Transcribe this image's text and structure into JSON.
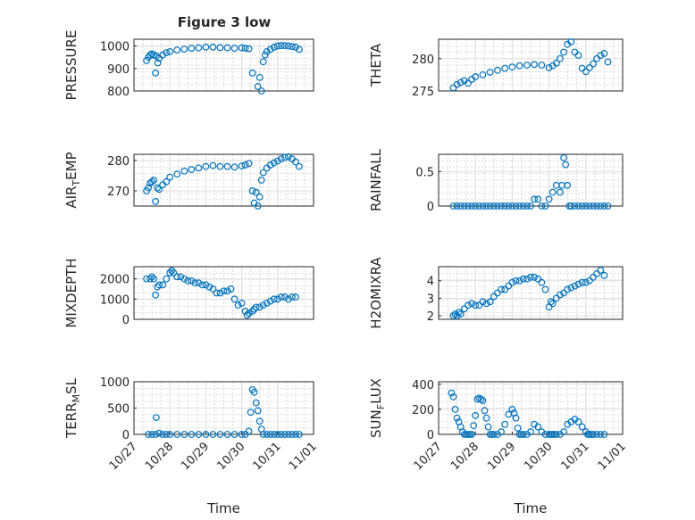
{
  "figure_title": "Figure 3 low",
  "marker_color": "#0072bd",
  "chart_data": [
    {
      "type": "scatter",
      "id": "pressure",
      "ylabel": "PRESSURE",
      "xlabel": "",
      "ylim": [
        800,
        1030
      ],
      "yticks": [
        800,
        900,
        1000
      ],
      "xlim": [
        0,
        5
      ],
      "xticks": [],
      "grid": true,
      "x": [
        0.35,
        0.4,
        0.45,
        0.5,
        0.55,
        0.6,
        0.62,
        0.66,
        0.7,
        0.8,
        0.9,
        1.0,
        1.2,
        1.4,
        1.6,
        1.8,
        2.0,
        2.2,
        2.4,
        2.6,
        2.8,
        3.0,
        3.1,
        3.2,
        3.3,
        3.45,
        3.5,
        3.55,
        3.6,
        3.65,
        3.7,
        3.8,
        3.9,
        4.0,
        4.1,
        4.2,
        4.3,
        4.4,
        4.5,
        4.6
      ],
      "y": [
        935,
        950,
        960,
        965,
        960,
        880,
        955,
        925,
        945,
        960,
        970,
        975,
        982,
        986,
        990,
        992,
        995,
        995,
        993,
        992,
        990,
        992,
        990,
        988,
        880,
        820,
        860,
        800,
        930,
        960,
        975,
        985,
        995,
        1000,
        1002,
        1002,
        1000,
        998,
        995,
        985
      ]
    },
    {
      "type": "scatter",
      "id": "theta",
      "ylabel": "THETA",
      "xlabel": "",
      "ylim": [
        275,
        283
      ],
      "yticks": [
        275,
        280
      ],
      "xlim": [
        0,
        5
      ],
      "xticks": [],
      "grid": true,
      "x": [
        0.4,
        0.5,
        0.6,
        0.7,
        0.8,
        0.9,
        1.0,
        1.2,
        1.4,
        1.6,
        1.8,
        2.0,
        2.2,
        2.4,
        2.6,
        2.8,
        3.0,
        3.1,
        3.2,
        3.3,
        3.4,
        3.5,
        3.6,
        3.7,
        3.8,
        3.9,
        4.0,
        4.1,
        4.2,
        4.3,
        4.4,
        4.5,
        4.6
      ],
      "y": [
        275.5,
        276,
        276.3,
        276.6,
        276.2,
        276.8,
        277.2,
        277.5,
        277.9,
        278.2,
        278.5,
        278.7,
        278.9,
        279,
        279.1,
        279,
        278.6,
        278.9,
        279.3,
        280,
        281,
        282.2,
        282.6,
        281,
        280.5,
        278.5,
        278,
        278.6,
        279.2,
        280,
        280.5,
        280.8,
        279.5
      ]
    },
    {
      "type": "scatter",
      "id": "air-temp",
      "ylabel": "AIR_TEMP",
      "xlabel": "",
      "ylim": [
        265,
        282
      ],
      "yticks": [
        270,
        280
      ],
      "xlim": [
        0,
        5
      ],
      "xticks": [],
      "grid": true,
      "x": [
        0.35,
        0.4,
        0.45,
        0.5,
        0.55,
        0.6,
        0.65,
        0.7,
        0.8,
        0.9,
        1.0,
        1.2,
        1.4,
        1.6,
        1.8,
        2.0,
        2.2,
        2.4,
        2.6,
        2.8,
        3.0,
        3.1,
        3.2,
        3.3,
        3.35,
        3.4,
        3.45,
        3.5,
        3.55,
        3.6,
        3.7,
        3.8,
        3.9,
        4.0,
        4.1,
        4.2,
        4.3,
        4.4,
        4.5,
        4.6
      ],
      "y": [
        270,
        271,
        272.5,
        273,
        273.5,
        266.5,
        271,
        270.5,
        272,
        273,
        274.5,
        275.5,
        276.5,
        277,
        277.5,
        278,
        278.3,
        278,
        278,
        277.8,
        278.2,
        278.5,
        279,
        270,
        266,
        269.5,
        265,
        268,
        273.5,
        276,
        277.5,
        278.5,
        279.2,
        279.8,
        280.5,
        281,
        281.2,
        280.5,
        279.5,
        278
      ]
    },
    {
      "type": "scatter",
      "id": "rainfall",
      "ylabel": "RAINFALL",
      "xlabel": "",
      "ylim": [
        0,
        0.75
      ],
      "yticks": [
        0,
        0.5
      ],
      "xlim": [
        0,
        5
      ],
      "xticks": [],
      "grid": true,
      "x": [
        0.4,
        0.5,
        0.6,
        0.7,
        0.8,
        0.9,
        1.0,
        1.1,
        1.2,
        1.3,
        1.4,
        1.5,
        1.6,
        1.7,
        1.8,
        1.9,
        2.0,
        2.1,
        2.2,
        2.3,
        2.4,
        2.5,
        2.6,
        2.7,
        2.8,
        2.9,
        3.0,
        3.1,
        3.2,
        3.3,
        3.35,
        3.4,
        3.45,
        3.5,
        3.55,
        3.6,
        3.7,
        3.8,
        3.9,
        4.0,
        4.1,
        4.2,
        4.3,
        4.4,
        4.5,
        4.6
      ],
      "y": [
        0,
        0,
        0,
        0,
        0,
        0,
        0,
        0,
        0,
        0,
        0,
        0,
        0,
        0,
        0,
        0,
        0,
        0,
        0,
        0,
        0,
        0,
        0.1,
        0.1,
        0,
        0,
        0.1,
        0.2,
        0.3,
        0.2,
        0.3,
        0.7,
        0.6,
        0.3,
        0,
        0,
        0,
        0,
        0,
        0,
        0,
        0,
        0,
        0,
        0,
        0
      ]
    },
    {
      "type": "scatter",
      "id": "mixdepth",
      "ylabel": "MIXDEPTH",
      "xlabel": "",
      "ylim": [
        0,
        2600
      ],
      "yticks": [
        0,
        1000,
        2000
      ],
      "xlim": [
        0,
        5
      ],
      "xticks": [],
      "grid": true,
      "x": [
        0.35,
        0.45,
        0.5,
        0.55,
        0.6,
        0.65,
        0.7,
        0.8,
        0.9,
        1.0,
        1.05,
        1.1,
        1.2,
        1.3,
        1.4,
        1.5,
        1.6,
        1.7,
        1.8,
        1.9,
        2.0,
        2.1,
        2.2,
        2.3,
        2.4,
        2.5,
        2.6,
        2.7,
        2.8,
        2.9,
        3.0,
        3.1,
        3.15,
        3.2,
        3.3,
        3.35,
        3.4,
        3.5,
        3.6,
        3.7,
        3.8,
        3.9,
        4.0,
        4.1,
        4.2,
        4.3,
        4.4,
        4.5
      ],
      "y": [
        2000,
        2000,
        2100,
        2000,
        1200,
        1600,
        1700,
        1700,
        2000,
        2300,
        2400,
        2300,
        2100,
        2100,
        2000,
        1900,
        1900,
        1800,
        1800,
        1700,
        1700,
        1600,
        1500,
        1300,
        1300,
        1400,
        1400,
        1500,
        1000,
        700,
        800,
        400,
        200,
        300,
        400,
        500,
        600,
        600,
        700,
        800,
        900,
        1000,
        1000,
        1100,
        1100,
        1000,
        1100,
        1100
      ]
    },
    {
      "type": "scatter",
      "id": "h2omixra",
      "ylabel": "H2OMIXRA",
      "xlabel": "",
      "ylim": [
        1.8,
        4.8
      ],
      "yticks": [
        2,
        3,
        4
      ],
      "xlim": [
        0,
        5
      ],
      "xticks": [],
      "grid": true,
      "x": [
        0.4,
        0.45,
        0.5,
        0.55,
        0.6,
        0.7,
        0.8,
        0.9,
        1.0,
        1.1,
        1.2,
        1.3,
        1.4,
        1.5,
        1.6,
        1.7,
        1.8,
        1.9,
        2.0,
        2.1,
        2.2,
        2.3,
        2.4,
        2.5,
        2.6,
        2.7,
        2.8,
        2.9,
        3.0,
        3.05,
        3.1,
        3.2,
        3.3,
        3.4,
        3.5,
        3.6,
        3.7,
        3.8,
        3.9,
        4.0,
        4.1,
        4.2,
        4.3,
        4.4,
        4.5
      ],
      "y": [
        2,
        2.1,
        2,
        2.2,
        2.1,
        2.4,
        2.6,
        2.7,
        2.6,
        2.6,
        2.8,
        2.7,
        2.8,
        3.1,
        3.3,
        3.5,
        3.5,
        3.7,
        3.9,
        4,
        4,
        4.1,
        4.1,
        4.2,
        4.2,
        4.1,
        3.9,
        3.5,
        2.5,
        2.8,
        2.7,
        3,
        3.2,
        3.3,
        3.5,
        3.6,
        3.7,
        3.8,
        3.9,
        3.9,
        4.0,
        4.2,
        4.4,
        4.6,
        4.3
      ]
    },
    {
      "type": "scatter",
      "id": "terr-msl",
      "ylabel": "TERR_MSL",
      "xlabel": "Time",
      "ylim": [
        0,
        1000
      ],
      "yticks": [
        0,
        500,
        1000
      ],
      "xlim": [
        0,
        5
      ],
      "xticks": [
        "10/27",
        "10/28",
        "10/29",
        "10/30",
        "10/31",
        "11/01"
      ],
      "grid": true,
      "x": [
        0.4,
        0.5,
        0.6,
        0.62,
        0.7,
        0.8,
        0.9,
        1.0,
        1.2,
        1.4,
        1.6,
        1.8,
        2.0,
        2.2,
        2.4,
        2.6,
        2.8,
        3.0,
        3.1,
        3.2,
        3.25,
        3.3,
        3.35,
        3.4,
        3.45,
        3.5,
        3.55,
        3.6,
        3.7,
        3.8,
        3.9,
        4.0,
        4.1,
        4.2,
        4.3,
        4.4,
        4.5,
        4.6
      ],
      "y": [
        0,
        0,
        0,
        320,
        20,
        0,
        0,
        0,
        0,
        0,
        0,
        0,
        0,
        0,
        0,
        0,
        0,
        0,
        0,
        60,
        420,
        850,
        800,
        600,
        450,
        250,
        100,
        0,
        0,
        0,
        0,
        0,
        0,
        0,
        0,
        0,
        0,
        0
      ]
    },
    {
      "type": "scatter",
      "id": "sun-flux",
      "ylabel": "SUN_FLUX",
      "xlabel": "Time",
      "ylim": [
        0,
        420
      ],
      "yticks": [
        0,
        200,
        400
      ],
      "xlim": [
        0,
        5
      ],
      "xticks": [
        "10/27",
        "10/28",
        "10/29",
        "10/30",
        "10/31",
        "11/01"
      ],
      "grid": true,
      "x": [
        0.35,
        0.4,
        0.45,
        0.5,
        0.55,
        0.6,
        0.65,
        0.7,
        0.75,
        0.8,
        0.85,
        0.9,
        0.95,
        1.0,
        1.05,
        1.1,
        1.15,
        1.2,
        1.25,
        1.3,
        1.35,
        1.4,
        1.45,
        1.5,
        1.6,
        1.7,
        1.8,
        1.9,
        2.0,
        2.05,
        2.1,
        2.15,
        2.2,
        2.25,
        2.3,
        2.4,
        2.5,
        2.6,
        2.7,
        2.8,
        2.9,
        3.0,
        3.05,
        3.1,
        3.15,
        3.2,
        3.3,
        3.4,
        3.5,
        3.6,
        3.7,
        3.8,
        3.9,
        4.0,
        4.05,
        4.1,
        4.15,
        4.2,
        4.3,
        4.4,
        4.5
      ],
      "y": [
        330,
        300,
        200,
        130,
        100,
        60,
        20,
        0,
        0,
        0,
        0,
        0,
        70,
        150,
        280,
        290,
        280,
        270,
        190,
        130,
        60,
        0,
        0,
        0,
        0,
        20,
        80,
        160,
        200,
        170,
        130,
        50,
        0,
        0,
        0,
        0,
        20,
        80,
        60,
        20,
        0,
        0,
        0,
        0,
        0,
        0,
        0,
        20,
        80,
        100,
        120,
        100,
        60,
        20,
        0,
        0,
        0,
        0,
        0,
        0,
        0
      ]
    }
  ]
}
